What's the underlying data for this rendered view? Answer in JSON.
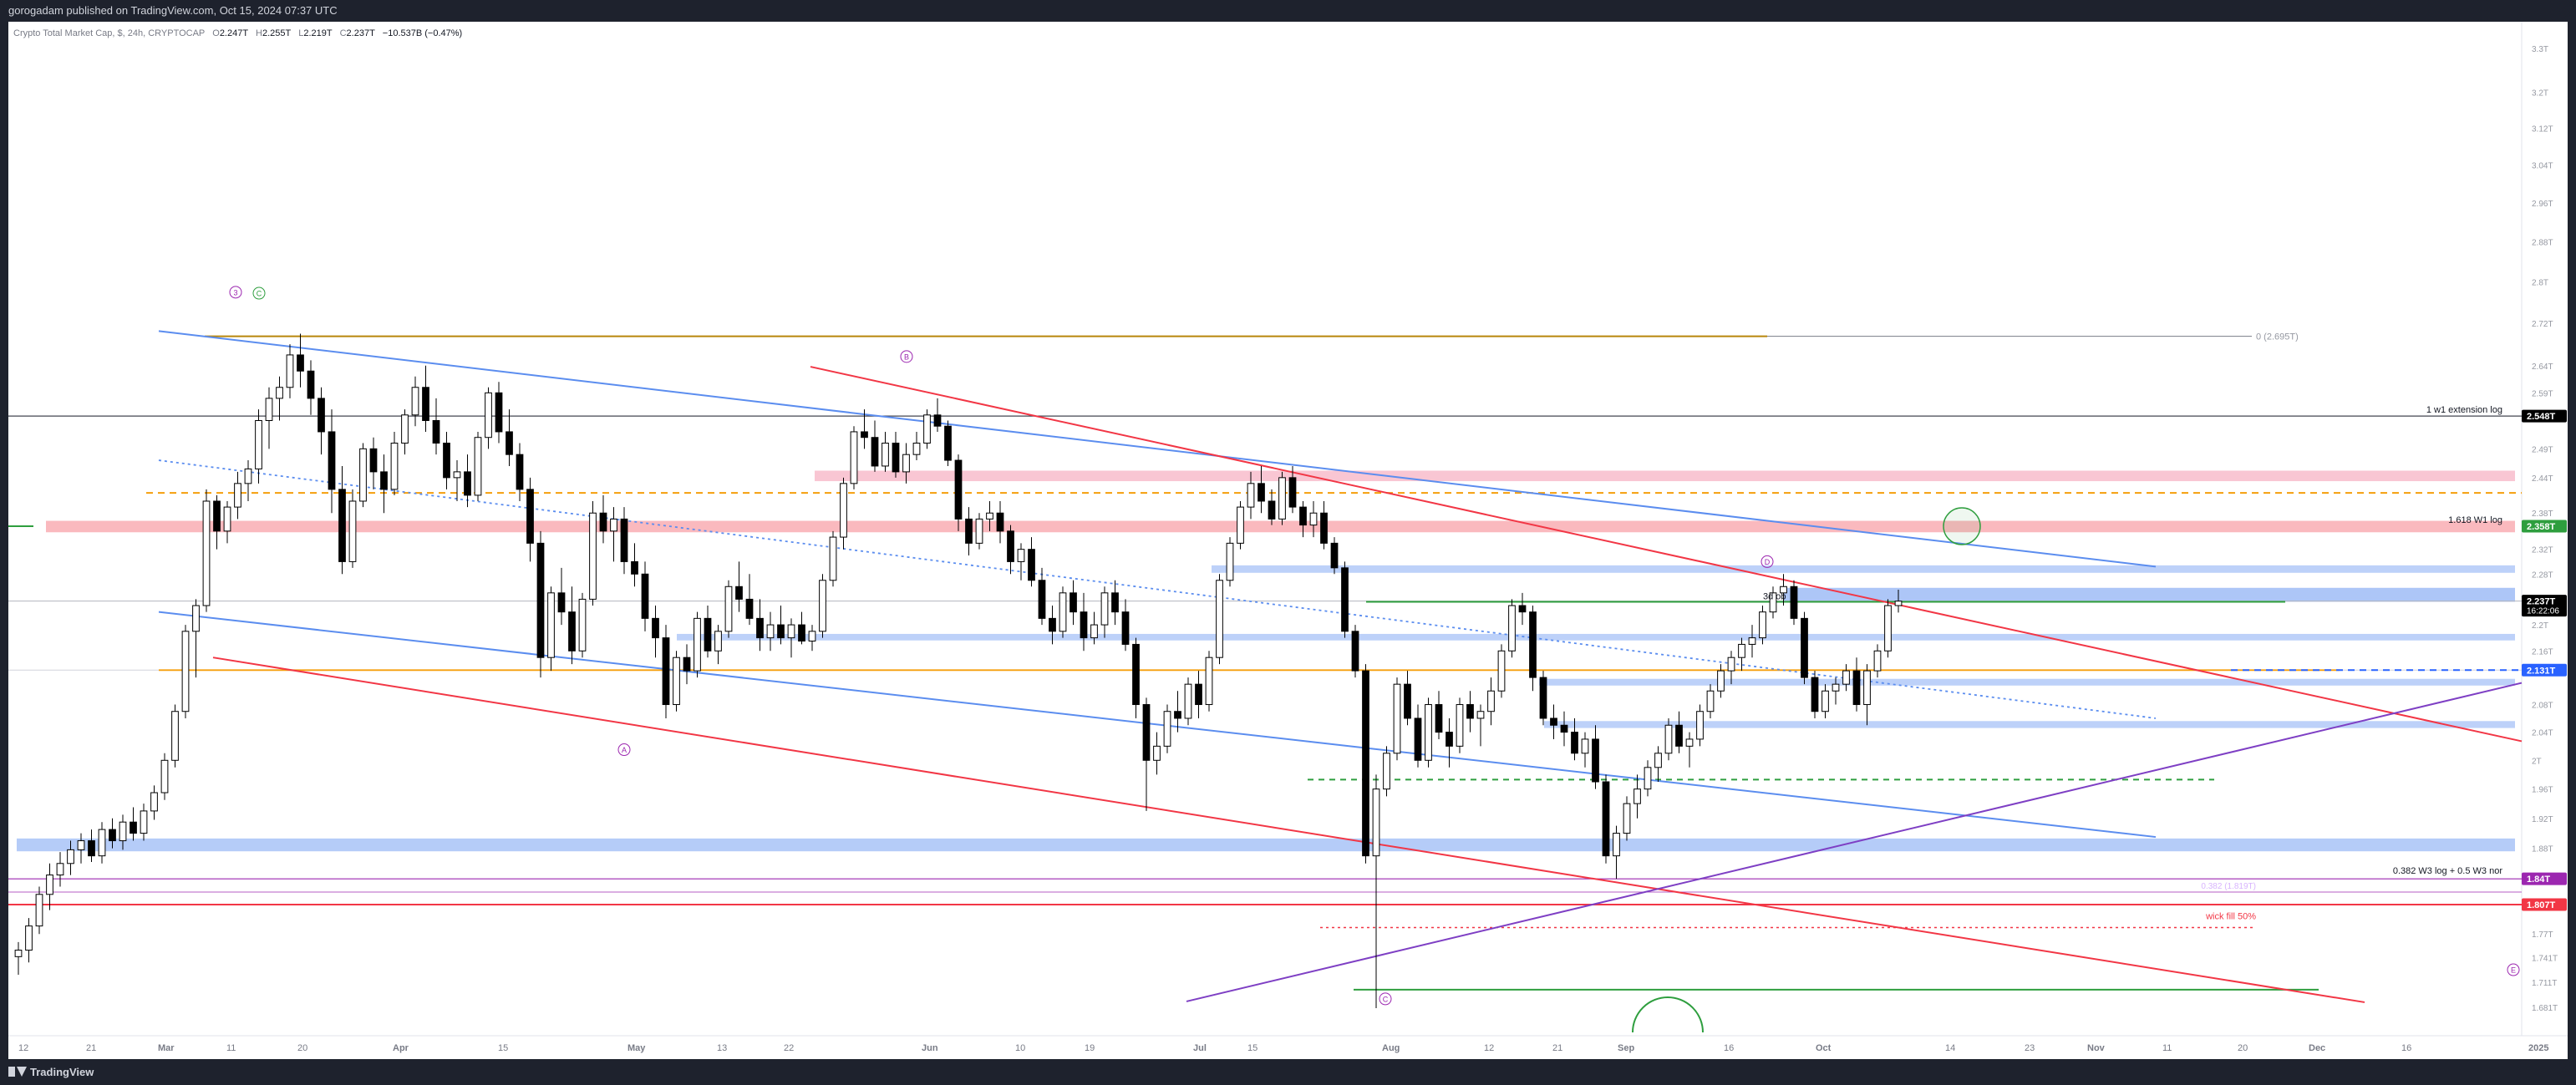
{
  "header": {
    "publisher": "gorogadam published on TradingView.com, Oct 15, 2024 07:37 UTC"
  },
  "legend": {
    "symbol": "Crypto Total Market Cap, $, 24h, CRYPTOCAP",
    "open_label": "O",
    "open": "2.247T",
    "high_label": "H",
    "high": "2.255T",
    "low_label": "L",
    "low": "2.219T",
    "close_label": "C",
    "close": "2.237T",
    "change": "−10.537B (−0.47%)"
  },
  "footer": {
    "brand": "TradingView"
  },
  "colors": {
    "up": "#ffffff",
    "down": "#000000",
    "red": "#f23645",
    "blue": "#5b8def",
    "purple": "#7e3fc4",
    "green": "#2e9e3e",
    "orange": "#f59e0b",
    "pink": "#f7b8c8"
  },
  "chart_data": {
    "type": "candlestick",
    "title": "Crypto Total Market Cap, $, 24h, CRYPTOCAP",
    "y_axis_labels": [
      "3.3T",
      "3.2T",
      "3.12T",
      "3.04T",
      "2.96T",
      "2.88T",
      "2.8T",
      "2.72T",
      "2.64T",
      "2.59T",
      "2.49T",
      "2.44T",
      "2.38T",
      "2.32T",
      "2.28T",
      "2.2T",
      "2.16T",
      "2.08T",
      "2.04T",
      "2T",
      "1.96T",
      "1.92T",
      "1.88T",
      "1.77T",
      "1.741T",
      "1.711T",
      "1.681T"
    ],
    "x_axis_labels": [
      "12",
      "21",
      "Mar",
      "11",
      "20",
      "Apr",
      "15",
      "May",
      "13",
      "22",
      "Jun",
      "10",
      "19",
      "Jul",
      "15",
      "Aug",
      "12",
      "21",
      "Sep",
      "16",
      "Oct",
      "14",
      "23",
      "Nov",
      "11",
      "20",
      "Dec",
      "16",
      "2025"
    ],
    "price_tags": [
      {
        "label": "2.548T",
        "color": "#000000"
      },
      {
        "label": "2.358T",
        "color": "#2e9e3e"
      },
      {
        "label": "2.237T",
        "sub": "16:22:06",
        "color": "#000000"
      },
      {
        "label": "2.131T",
        "color": "#2962ff"
      },
      {
        "label": "1.84T",
        "color": "#9c27b0"
      },
      {
        "label": "1.807T",
        "color": "#f23645"
      }
    ],
    "annotations": {
      "fib_0": "0 (2.695T)",
      "extension": "1 w1 extension log",
      "fib_1618": "1.618 W1 log",
      "ob": "3d ob",
      "fib_0382": "0.382 W3 log + 0.5 W3 nor",
      "fib_0382_sub": "0.382 (1.819T)",
      "wick": "wick fill 50%"
    },
    "wave_labels": [
      "3",
      "C",
      "B",
      "A",
      "D",
      "C",
      "E"
    ],
    "ohlc": [
      [
        1.742,
        1.76,
        1.72,
        1.75
      ],
      [
        1.75,
        1.79,
        1.735,
        1.78
      ],
      [
        1.78,
        1.83,
        1.77,
        1.82
      ],
      [
        1.82,
        1.86,
        1.8,
        1.845
      ],
      [
        1.845,
        1.875,
        1.83,
        1.86
      ],
      [
        1.86,
        1.89,
        1.845,
        1.878
      ],
      [
        1.878,
        1.9,
        1.86,
        1.89
      ],
      [
        1.89,
        1.905,
        1.862,
        1.87
      ],
      [
        1.87,
        1.915,
        1.86,
        1.905
      ],
      [
        1.905,
        1.92,
        1.88,
        1.89
      ],
      [
        1.89,
        1.925,
        1.878,
        1.915
      ],
      [
        1.915,
        1.935,
        1.89,
        1.9
      ],
      [
        1.9,
        1.94,
        1.89,
        1.93
      ],
      [
        1.93,
        1.965,
        1.918,
        1.955
      ],
      [
        1.955,
        2.01,
        1.945,
        2.0
      ],
      [
        2.0,
        2.08,
        1.99,
        2.07
      ],
      [
        2.07,
        2.2,
        2.06,
        2.19
      ],
      [
        2.19,
        2.24,
        2.12,
        2.23
      ],
      [
        2.23,
        2.42,
        2.22,
        2.4
      ],
      [
        2.4,
        2.41,
        2.32,
        2.35
      ],
      [
        2.35,
        2.4,
        2.33,
        2.39
      ],
      [
        2.39,
        2.45,
        2.37,
        2.43
      ],
      [
        2.43,
        2.47,
        2.4,
        2.455
      ],
      [
        2.455,
        2.56,
        2.43,
        2.54
      ],
      [
        2.54,
        2.6,
        2.49,
        2.58
      ],
      [
        2.58,
        2.62,
        2.54,
        2.6
      ],
      [
        2.6,
        2.68,
        2.58,
        2.66
      ],
      [
        2.66,
        2.7,
        2.6,
        2.63
      ],
      [
        2.63,
        2.65,
        2.55,
        2.58
      ],
      [
        2.58,
        2.6,
        2.48,
        2.52
      ],
      [
        2.52,
        2.56,
        2.38,
        2.42
      ],
      [
        2.42,
        2.46,
        2.28,
        2.3
      ],
      [
        2.3,
        2.42,
        2.29,
        2.4
      ],
      [
        2.4,
        2.5,
        2.39,
        2.49
      ],
      [
        2.49,
        2.51,
        2.42,
        2.45
      ],
      [
        2.45,
        2.48,
        2.38,
        2.42
      ],
      [
        2.42,
        2.52,
        2.41,
        2.5
      ],
      [
        2.5,
        2.56,
        2.48,
        2.55
      ],
      [
        2.55,
        2.62,
        2.53,
        2.6
      ],
      [
        2.6,
        2.64,
        2.52,
        2.54
      ],
      [
        2.54,
        2.58,
        2.48,
        2.5
      ],
      [
        2.5,
        2.52,
        2.42,
        2.44
      ],
      [
        2.44,
        2.47,
        2.4,
        2.45
      ],
      [
        2.45,
        2.48,
        2.39,
        2.41
      ],
      [
        2.41,
        2.52,
        2.4,
        2.51
      ],
      [
        2.51,
        2.6,
        2.49,
        2.59
      ],
      [
        2.59,
        2.61,
        2.5,
        2.52
      ],
      [
        2.52,
        2.56,
        2.46,
        2.48
      ],
      [
        2.48,
        2.5,
        2.4,
        2.42
      ],
      [
        2.42,
        2.44,
        2.3,
        2.33
      ],
      [
        2.33,
        2.35,
        2.12,
        2.15
      ],
      [
        2.15,
        2.26,
        2.13,
        2.25
      ],
      [
        2.25,
        2.29,
        2.2,
        2.22
      ],
      [
        2.22,
        2.26,
        2.14,
        2.16
      ],
      [
        2.16,
        2.25,
        2.15,
        2.24
      ],
      [
        2.24,
        2.4,
        2.23,
        2.38
      ],
      [
        2.38,
        2.41,
        2.33,
        2.35
      ],
      [
        2.35,
        2.39,
        2.3,
        2.37
      ],
      [
        2.37,
        2.39,
        2.28,
        2.3
      ],
      [
        2.3,
        2.33,
        2.26,
        2.28
      ],
      [
        2.28,
        2.3,
        2.19,
        2.21
      ],
      [
        2.21,
        2.23,
        2.15,
        2.18
      ],
      [
        2.18,
        2.2,
        2.06,
        2.08
      ],
      [
        2.08,
        2.16,
        2.07,
        2.15
      ],
      [
        2.15,
        2.17,
        2.11,
        2.13
      ],
      [
        2.13,
        2.22,
        2.12,
        2.21
      ],
      [
        2.21,
        2.23,
        2.15,
        2.16
      ],
      [
        2.16,
        2.2,
        2.14,
        2.19
      ],
      [
        2.19,
        2.27,
        2.18,
        2.26
      ],
      [
        2.26,
        2.3,
        2.22,
        2.24
      ],
      [
        2.24,
        2.28,
        2.2,
        2.21
      ],
      [
        2.21,
        2.24,
        2.16,
        2.18
      ],
      [
        2.18,
        2.22,
        2.16,
        2.2
      ],
      [
        2.2,
        2.23,
        2.17,
        2.18
      ],
      [
        2.18,
        2.21,
        2.15,
        2.2
      ],
      [
        2.2,
        2.22,
        2.17,
        2.175
      ],
      [
        2.175,
        2.2,
        2.16,
        2.19
      ],
      [
        2.19,
        2.28,
        2.18,
        2.27
      ],
      [
        2.27,
        2.35,
        2.26,
        2.34
      ],
      [
        2.34,
        2.44,
        2.32,
        2.43
      ],
      [
        2.43,
        2.53,
        2.42,
        2.52
      ],
      [
        2.52,
        2.56,
        2.49,
        2.51
      ],
      [
        2.51,
        2.54,
        2.45,
        2.46
      ],
      [
        2.46,
        2.52,
        2.45,
        2.5
      ],
      [
        2.5,
        2.52,
        2.44,
        2.45
      ],
      [
        2.45,
        2.5,
        2.43,
        2.48
      ],
      [
        2.48,
        2.52,
        2.47,
        2.5
      ],
      [
        2.5,
        2.56,
        2.49,
        2.55
      ],
      [
        2.55,
        2.58,
        2.52,
        2.53
      ],
      [
        2.53,
        2.54,
        2.46,
        2.47
      ],
      [
        2.47,
        2.48,
        2.35,
        2.37
      ],
      [
        2.37,
        2.39,
        2.31,
        2.33
      ],
      [
        2.33,
        2.38,
        2.32,
        2.37
      ],
      [
        2.37,
        2.4,
        2.35,
        2.38
      ],
      [
        2.38,
        2.4,
        2.33,
        2.35
      ],
      [
        2.35,
        2.36,
        2.28,
        2.3
      ],
      [
        2.3,
        2.33,
        2.27,
        2.32
      ],
      [
        2.32,
        2.34,
        2.26,
        2.27
      ],
      [
        2.27,
        2.29,
        2.2,
        2.21
      ],
      [
        2.21,
        2.23,
        2.17,
        2.19
      ],
      [
        2.19,
        2.26,
        2.18,
        2.25
      ],
      [
        2.25,
        2.27,
        2.2,
        2.22
      ],
      [
        2.22,
        2.25,
        2.16,
        2.18
      ],
      [
        2.18,
        2.22,
        2.17,
        2.2
      ],
      [
        2.2,
        2.26,
        2.18,
        2.25
      ],
      [
        2.25,
        2.27,
        2.2,
        2.22
      ],
      [
        2.22,
        2.24,
        2.16,
        2.17
      ],
      [
        2.17,
        2.18,
        2.06,
        2.08
      ],
      [
        2.08,
        2.09,
        1.93,
        2.0
      ],
      [
        2.0,
        2.04,
        1.98,
        2.02
      ],
      [
        2.02,
        2.08,
        2.01,
        2.07
      ],
      [
        2.07,
        2.1,
        2.04,
        2.06
      ],
      [
        2.06,
        2.12,
        2.05,
        2.11
      ],
      [
        2.11,
        2.13,
        2.06,
        2.08
      ],
      [
        2.08,
        2.16,
        2.07,
        2.15
      ],
      [
        2.15,
        2.28,
        2.14,
        2.27
      ],
      [
        2.27,
        2.34,
        2.26,
        2.33
      ],
      [
        2.33,
        2.4,
        2.32,
        2.39
      ],
      [
        2.39,
        2.45,
        2.37,
        2.43
      ],
      [
        2.43,
        2.46,
        2.38,
        2.4
      ],
      [
        2.4,
        2.42,
        2.36,
        2.37
      ],
      [
        2.37,
        2.45,
        2.36,
        2.44
      ],
      [
        2.44,
        2.46,
        2.38,
        2.39
      ],
      [
        2.39,
        2.4,
        2.34,
        2.36
      ],
      [
        2.36,
        2.4,
        2.34,
        2.38
      ],
      [
        2.38,
        2.4,
        2.32,
        2.33
      ],
      [
        2.33,
        2.34,
        2.28,
        2.29
      ],
      [
        2.29,
        2.3,
        2.18,
        2.19
      ],
      [
        2.19,
        2.2,
        2.12,
        2.13
      ],
      [
        2.13,
        2.14,
        1.86,
        1.87
      ],
      [
        1.87,
        1.98,
        1.68,
        1.96
      ],
      [
        1.96,
        2.02,
        1.95,
        2.01
      ],
      [
        2.01,
        2.12,
        2.0,
        2.11
      ],
      [
        2.11,
        2.13,
        2.05,
        2.06
      ],
      [
        2.06,
        2.08,
        1.99,
        2.0
      ],
      [
        2.0,
        2.09,
        1.99,
        2.08
      ],
      [
        2.08,
        2.1,
        2.03,
        2.04
      ],
      [
        2.04,
        2.06,
        1.99,
        2.02
      ],
      [
        2.02,
        2.09,
        2.01,
        2.08
      ],
      [
        2.08,
        2.1,
        2.04,
        2.06
      ],
      [
        2.06,
        2.08,
        2.02,
        2.07
      ],
      [
        2.07,
        2.12,
        2.05,
        2.1
      ],
      [
        2.1,
        2.17,
        2.09,
        2.16
      ],
      [
        2.16,
        2.24,
        2.15,
        2.23
      ],
      [
        2.23,
        2.25,
        2.2,
        2.22
      ],
      [
        2.22,
        2.23,
        2.1,
        2.12
      ],
      [
        2.12,
        2.13,
        2.05,
        2.06
      ],
      [
        2.06,
        2.08,
        2.03,
        2.05
      ],
      [
        2.05,
        2.07,
        2.02,
        2.04
      ],
      [
        2.04,
        2.06,
        2.0,
        2.01
      ],
      [
        2.01,
        2.04,
        1.99,
        2.03
      ],
      [
        2.03,
        2.05,
        1.96,
        1.97
      ],
      [
        1.97,
        1.98,
        1.86,
        1.87
      ],
      [
        1.87,
        1.91,
        1.84,
        1.9
      ],
      [
        1.9,
        1.95,
        1.89,
        1.94
      ],
      [
        1.94,
        1.98,
        1.92,
        1.96
      ],
      [
        1.96,
        2.0,
        1.95,
        1.99
      ],
      [
        1.99,
        2.02,
        1.97,
        2.01
      ],
      [
        2.01,
        2.06,
        2.0,
        2.05
      ],
      [
        2.05,
        2.07,
        2.01,
        2.02
      ],
      [
        2.02,
        2.04,
        1.99,
        2.03
      ],
      [
        2.03,
        2.08,
        2.02,
        2.07
      ],
      [
        2.07,
        2.11,
        2.06,
        2.1
      ],
      [
        2.1,
        2.14,
        2.09,
        2.13
      ],
      [
        2.13,
        2.16,
        2.11,
        2.15
      ],
      [
        2.15,
        2.18,
        2.13,
        2.17
      ],
      [
        2.17,
        2.2,
        2.15,
        2.18
      ],
      [
        2.18,
        2.23,
        2.17,
        2.22
      ],
      [
        2.22,
        2.26,
        2.21,
        2.25
      ],
      [
        2.25,
        2.28,
        2.23,
        2.26
      ],
      [
        2.26,
        2.27,
        2.2,
        2.21
      ],
      [
        2.21,
        2.22,
        2.11,
        2.12
      ],
      [
        2.12,
        2.13,
        2.06,
        2.07
      ],
      [
        2.07,
        2.11,
        2.06,
        2.1
      ],
      [
        2.1,
        2.12,
        2.08,
        2.11
      ],
      [
        2.11,
        2.14,
        2.1,
        2.13
      ],
      [
        2.13,
        2.15,
        2.07,
        2.08
      ],
      [
        2.08,
        2.14,
        2.05,
        2.13
      ],
      [
        2.13,
        2.17,
        2.12,
        2.16
      ],
      [
        2.16,
        2.24,
        2.15,
        2.23
      ],
      [
        2.23,
        2.255,
        2.219,
        2.237
      ]
    ]
  }
}
